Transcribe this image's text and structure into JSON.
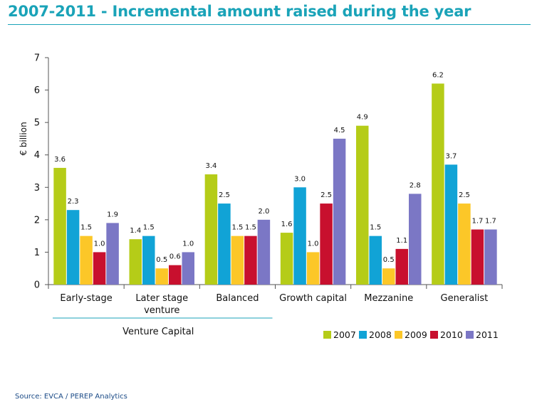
{
  "header": {
    "title": "2007-2011 - Incremental amount raised during the year",
    "title_color": "#1aa3b8"
  },
  "footer": {
    "source": "Source: EVCA / PEREP Analytics"
  },
  "chart_data": {
    "type": "bar",
    "title": "2007-2011 - Incremental amount raised during the year",
    "ylabel": "€ billion",
    "xlabel": "",
    "ylim": [
      0,
      7
    ],
    "yticks": [
      "0",
      "1",
      "2",
      "3",
      "4",
      "5",
      "6",
      "7"
    ],
    "categories": [
      [
        "Early-stage"
      ],
      [
        "Later stage",
        "venture"
      ],
      [
        "Balanced"
      ],
      [
        "Growth capital"
      ],
      [
        "Mezzanine"
      ],
      [
        "Generalist"
      ]
    ],
    "group_label": "Venture Capital",
    "grid": false,
    "legend_position": "bottom-right",
    "series": [
      {
        "name": "2007",
        "color": "#b5cc18",
        "values": [
          3.6,
          1.4,
          3.4,
          1.6,
          4.9,
          6.2
        ],
        "labels": [
          "3.6",
          "1.4",
          "3.4",
          "1.6",
          "4.9",
          "6.2"
        ]
      },
      {
        "name": "2008",
        "color": "#11a3d6",
        "values": [
          2.3,
          1.5,
          2.5,
          3.0,
          1.5,
          3.7
        ],
        "labels": [
          "2.3",
          "1.5",
          "2.5",
          "3.0",
          "1.5",
          "3.7"
        ]
      },
      {
        "name": "2009",
        "color": "#fcc728",
        "values": [
          1.5,
          0.5,
          1.5,
          1.0,
          0.5,
          2.5
        ],
        "labels": [
          "1.5",
          "0.5",
          "1.5",
          "1.0",
          "0.5",
          "2.5"
        ]
      },
      {
        "name": "2010",
        "color": "#c8102e",
        "values": [
          1.0,
          0.6,
          1.5,
          2.5,
          1.1,
          1.7
        ],
        "labels": [
          "1.0",
          "0.6",
          "1.5",
          "2.5",
          "1.1",
          "1.7"
        ]
      },
      {
        "name": "2011",
        "color": "#7b77c5",
        "values": [
          1.9,
          1.0,
          2.0,
          4.5,
          2.8,
          1.7
        ],
        "labels": [
          "1.9",
          "1.0",
          "2.0",
          "4.5",
          "2.8",
          "1.7"
        ]
      }
    ]
  }
}
